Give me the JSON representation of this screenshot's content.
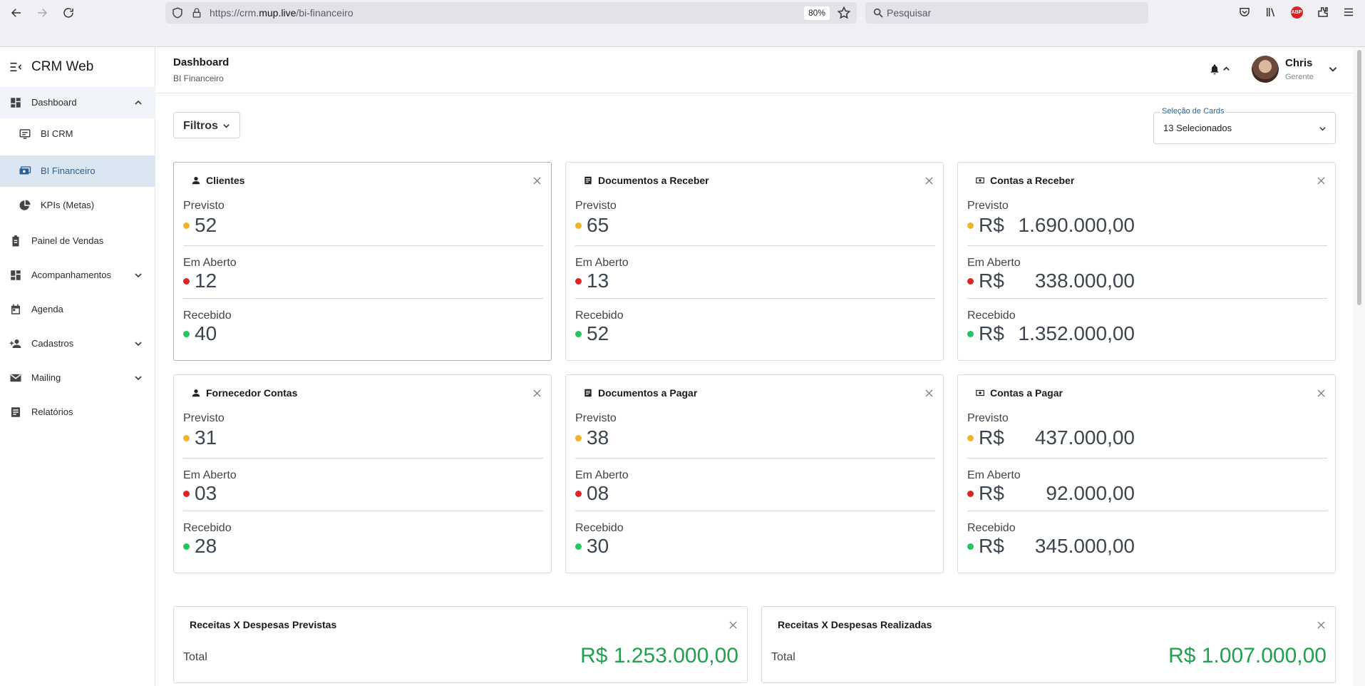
{
  "browser": {
    "url_prefix": "https://crm.",
    "url_domain": "mup.live",
    "url_path": "/bi-financeiro",
    "zoom": "80%",
    "search_placeholder": "Pesquisar",
    "abp": "ABP"
  },
  "sidebar": {
    "brand": "CRM Web",
    "dashboard": "Dashboard",
    "sub": [
      "BI CRM",
      "BI Financeiro",
      "KPIs (Metas)"
    ],
    "items": [
      "Painel de Vendas",
      "Acompanhamentos",
      "Agenda",
      "Cadastros",
      "Mailing",
      "Relatórios"
    ]
  },
  "header": {
    "title": "Dashboard",
    "subtitle": "BI Financeiro",
    "user_name": "Chris",
    "user_role": "Gerente"
  },
  "filters": {
    "label": "Filtros",
    "select_label": "Seleção de Cards",
    "select_value": "13 Selecionados"
  },
  "labels": {
    "previsto": "Previsto",
    "aberto": "Em Aberto",
    "recebido": "Recebido",
    "currency": "R$",
    "total": "Total"
  },
  "colors": {
    "yellow": "#f0b429",
    "red": "#dc2626",
    "green": "#22c55e",
    "total_green": "#22a050"
  },
  "cards": [
    {
      "title": "Clientes",
      "icon": "person-icon",
      "previsto": "52",
      "aberto": "12",
      "recebido": "40"
    },
    {
      "title": "Documentos a Receber",
      "icon": "document-icon",
      "previsto": "65",
      "aberto": "13",
      "recebido": "52"
    },
    {
      "title": "Contas a Receber",
      "icon": "money-icon",
      "previsto": "1.690.000,00",
      "aberto": "338.000,00",
      "recebido": "1.352.000,00"
    },
    {
      "title": "Fornecedor Contas",
      "icon": "person-icon",
      "previsto": "31",
      "aberto": "03",
      "recebido": "28"
    },
    {
      "title": "Documentos a Pagar",
      "icon": "document-icon",
      "previsto": "38",
      "aberto": "08",
      "recebido": "30"
    },
    {
      "title": "Contas a Pagar",
      "icon": "money-icon",
      "previsto": "437.000,00",
      "aberto": "92.000,00",
      "recebido": "345.000,00"
    }
  ],
  "totals": [
    {
      "title": "Receitas X Despesas Previstas",
      "value": "R$ 1.253.000,00"
    },
    {
      "title": "Receitas X Despesas Realizadas",
      "value": "R$ 1.007.000,00"
    }
  ]
}
